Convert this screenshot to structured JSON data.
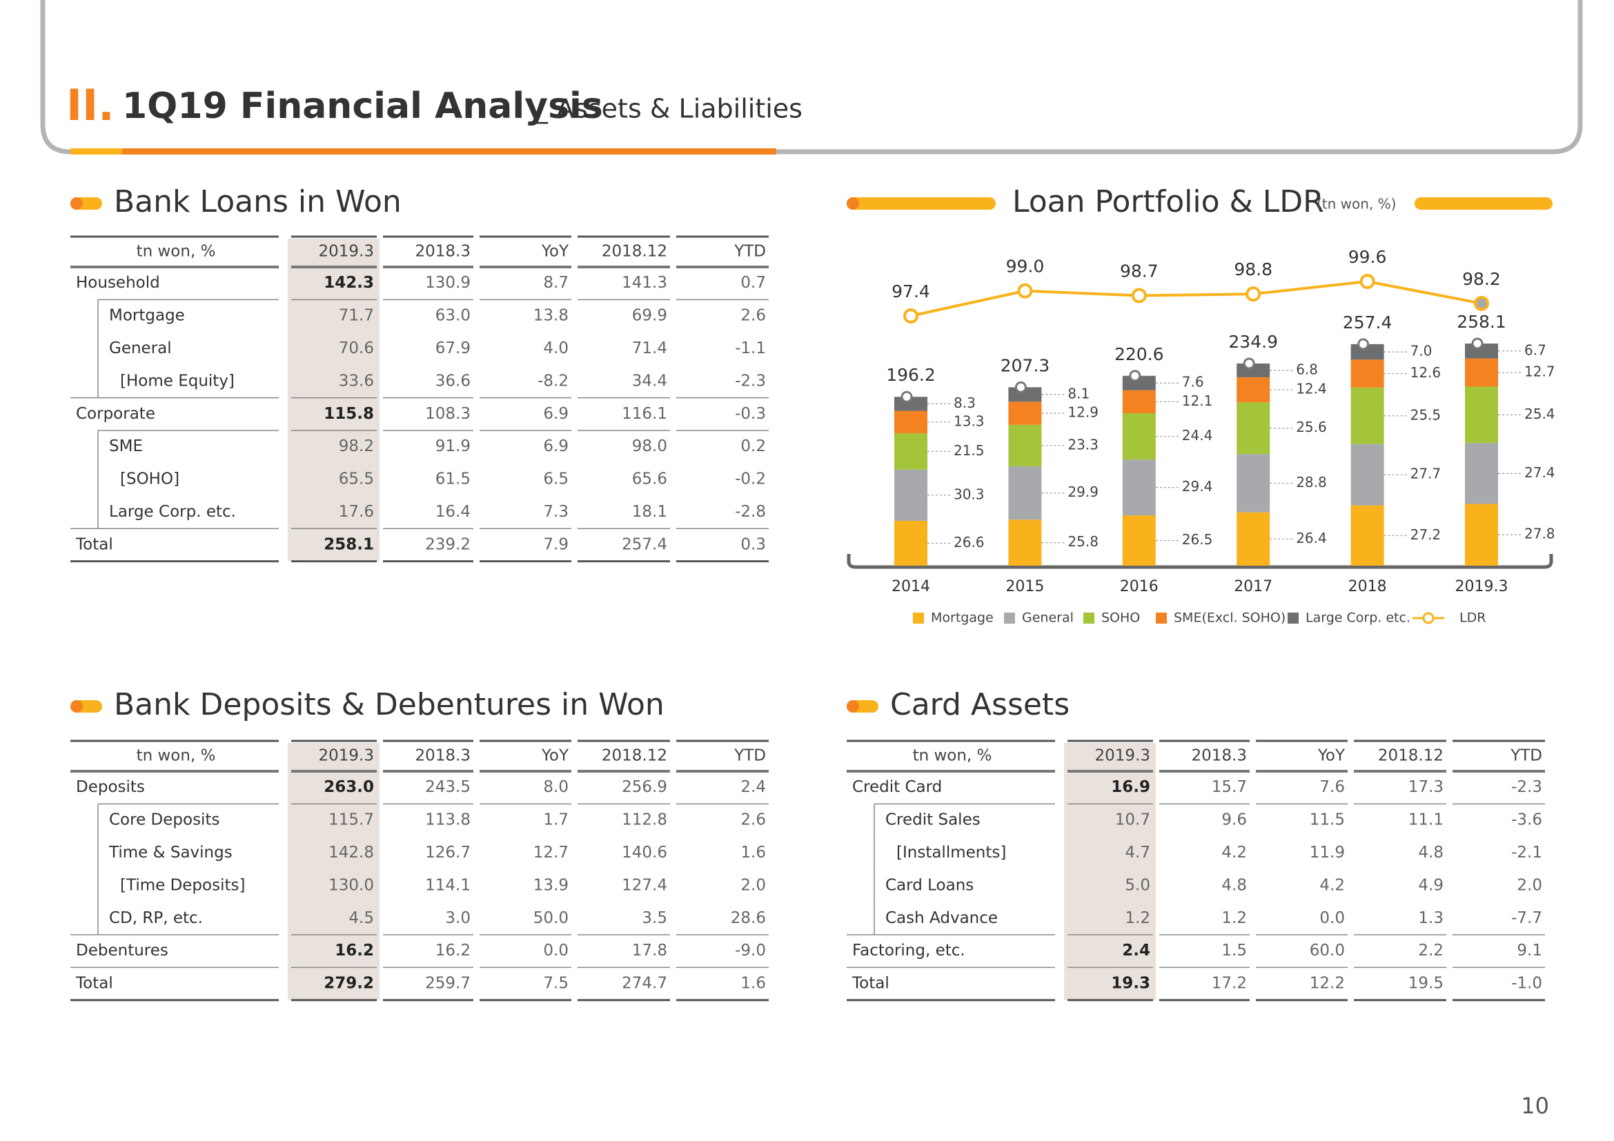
{
  "header": {
    "numeral": "II.",
    "title": "1Q19 Financial Analysis",
    "subtitle": "_ Assets & Liabilities"
  },
  "page_number": "10",
  "loans": {
    "title": "Bank Loans in Won",
    "columns": [
      "tn won, %",
      "2019.3",
      "2018.3",
      "YoY",
      "2018.12",
      "YTD"
    ],
    "rows": [
      [
        "Household",
        "142.3",
        "130.9",
        "8.7",
        "141.3",
        "0.7"
      ],
      [
        "Mortgage",
        "71.7",
        "63.0",
        "13.8",
        "69.9",
        "2.6"
      ],
      [
        "General",
        "70.6",
        "67.9",
        "4.0",
        "71.4",
        "-1.1"
      ],
      [
        "[Home Equity]",
        "33.6",
        "36.6",
        "-8.2",
        "34.4",
        "-2.3"
      ],
      [
        "Corporate",
        "115.8",
        "108.3",
        "6.9",
        "116.1",
        "-0.3"
      ],
      [
        "SME",
        "98.2",
        "91.9",
        "6.9",
        "98.0",
        "0.2"
      ],
      [
        "[SOHO]",
        "65.5",
        "61.5",
        "6.5",
        "65.6",
        "-0.2"
      ],
      [
        "Large Corp. etc.",
        "17.6",
        "16.4",
        "7.3",
        "18.1",
        "-2.8"
      ],
      [
        "Total",
        "258.1",
        "239.2",
        "7.9",
        "257.4",
        "0.3"
      ]
    ]
  },
  "deposits": {
    "title": "Bank Deposits & Debentures in Won",
    "columns": [
      "tn won, %",
      "2019.3",
      "2018.3",
      "YoY",
      "2018.12",
      "YTD"
    ],
    "rows": [
      [
        "Deposits",
        "263.0",
        "243.5",
        "8.0",
        "256.9",
        "2.4"
      ],
      [
        "Core Deposits",
        "115.7",
        "113.8",
        "1.7",
        "112.8",
        "2.6"
      ],
      [
        "Time & Savings",
        "142.8",
        "126.7",
        "12.7",
        "140.6",
        "1.6"
      ],
      [
        "[Time Deposits]",
        "130.0",
        "114.1",
        "13.9",
        "127.4",
        "2.0"
      ],
      [
        "CD, RP, etc.",
        "4.5",
        "3.0",
        "50.0",
        "3.5",
        "28.6"
      ],
      [
        "Debentures",
        "16.2",
        "16.2",
        "0.0",
        "17.8",
        "-9.0"
      ],
      [
        "Total",
        "279.2",
        "259.7",
        "7.5",
        "274.7",
        "1.6"
      ]
    ]
  },
  "card": {
    "title": "Card Assets",
    "columns": [
      "tn won, %",
      "2019.3",
      "2018.3",
      "YoY",
      "2018.12",
      "YTD"
    ],
    "rows": [
      [
        "Credit Card",
        "16.9",
        "15.7",
        "7.6",
        "17.3",
        "-2.3"
      ],
      [
        "Credit Sales",
        "10.7",
        "9.6",
        "11.5",
        "11.1",
        "-3.6"
      ],
      [
        "[Installments]",
        "4.7",
        "4.2",
        "11.9",
        "4.8",
        "-2.1"
      ],
      [
        "Card Loans",
        "5.0",
        "4.8",
        "4.2",
        "4.9",
        "2.0"
      ],
      [
        "Cash Advance",
        "1.2",
        "1.2",
        "0.0",
        "1.3",
        "-7.7"
      ],
      [
        "Factoring, etc.",
        "2.4",
        "1.5",
        "60.0",
        "2.2",
        "9.1"
      ],
      [
        "Total",
        "19.3",
        "17.2",
        "12.2",
        "19.5",
        "-1.0"
      ]
    ]
  },
  "chart_data": {
    "type": "bar",
    "title": "Loan Portfolio & LDR",
    "unit": "(tn won, %)",
    "categories": [
      "2014",
      "2015",
      "2016",
      "2017",
      "2018",
      "2019.3"
    ],
    "totals": [
      196.2,
      207.3,
      220.6,
      234.9,
      257.4,
      258.1
    ],
    "series": [
      {
        "name": "Mortgage",
        "color": "#f9b21b",
        "values": [
          26.6,
          25.8,
          26.5,
          26.4,
          27.2,
          27.8
        ]
      },
      {
        "name": "General",
        "color": "#a7a9ac",
        "values": [
          30.3,
          29.9,
          29.4,
          28.8,
          27.7,
          27.4
        ]
      },
      {
        "name": "SOHO",
        "color": "#a4c439",
        "values": [
          21.5,
          23.3,
          24.4,
          25.6,
          25.5,
          25.4
        ]
      },
      {
        "name": "SME(Excl. SOHO)",
        "color": "#f58220",
        "values": [
          13.3,
          12.9,
          12.1,
          12.4,
          12.6,
          12.7
        ]
      },
      {
        "name": "Large Corp. etc.",
        "color": "#6d6e70",
        "values": [
          8.3,
          8.1,
          7.6,
          6.8,
          7.0,
          6.7
        ],
        "value_labels": [
          "8.3",
          "8.1",
          "7.6",
          "6.8",
          "7.0",
          "6.7"
        ]
      },
      {
        "name": "LDR",
        "type": "line",
        "axis": "y2",
        "color": "#f9b21b",
        "values": [
          97.4,
          99.0,
          98.7,
          98.8,
          99.6,
          98.2
        ],
        "value_labels": [
          "97.4",
          "99.0",
          "98.7",
          "98.8",
          "99.6",
          "98.2"
        ]
      }
    ]
  }
}
